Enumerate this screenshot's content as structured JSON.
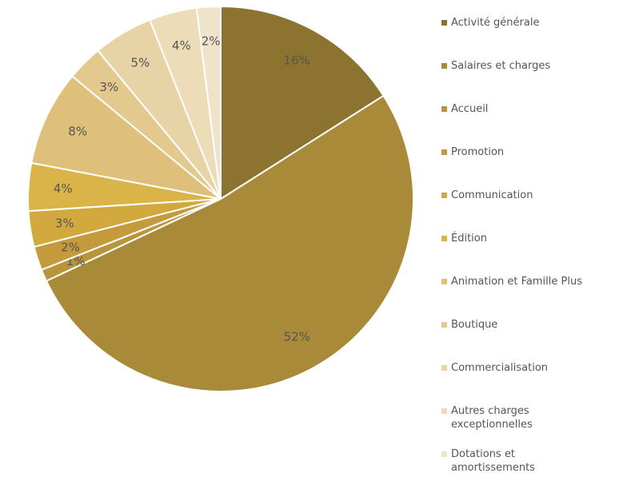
{
  "chart_data": {
    "type": "pie",
    "categories": [
      "Activité générale",
      "Salaires et charges",
      "Accueil",
      "Promotion",
      "Communication",
      "Édition",
      "Animation et Famille Plus",
      "Boutique",
      "Commercialisation",
      "Autres charges exceptionnelles",
      "Dotations et amortissements"
    ],
    "values": [
      16,
      52,
      1,
      2,
      3,
      4,
      8,
      3,
      5,
      4,
      2
    ],
    "value_labels": [
      "16%",
      "52%",
      "1%",
      "2%",
      "3%",
      "4%",
      "8%",
      "3%",
      "5%",
      "4%",
      "2%"
    ],
    "colors": [
      "#8c7330",
      "#a88a38",
      "#b8953a",
      "#c49a3c",
      "#d2a93f",
      "#dab448",
      "#dfc07a",
      "#e3c98e",
      "#e8d3a6",
      "#ecdcb8",
      "#efe3c9"
    ],
    "legend": "right"
  }
}
